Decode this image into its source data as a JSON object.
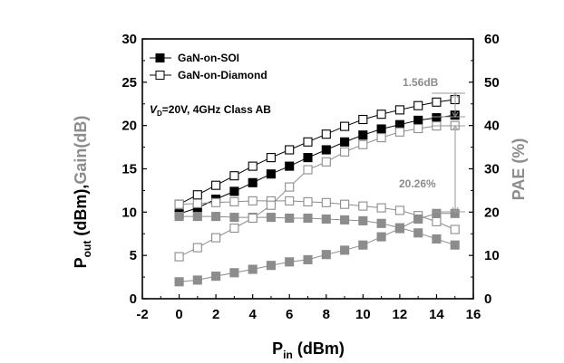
{
  "chart_data": {
    "type": "scatter",
    "xlabel": {
      "main": "P",
      "sub": "in",
      "rest": " (dBm)"
    },
    "ylabel_left": {
      "p": "P",
      "sub": "out",
      "mid": " (dBm),",
      "gain": "Gain(dB)"
    },
    "ylabel_right": "PAE (%)",
    "xlim": [
      -2,
      16
    ],
    "ylim_left": [
      0,
      30
    ],
    "ylim_right": [
      0,
      60
    ],
    "x_ticks": [
      "-2",
      "0",
      "2",
      "4",
      "6",
      "8",
      "10",
      "12",
      "14",
      "16"
    ],
    "y_left_ticks": [
      "0",
      "5",
      "10",
      "15",
      "20",
      "25",
      "30"
    ],
    "y_right_ticks": [
      "0",
      "10",
      "20",
      "30",
      "40",
      "50",
      "60"
    ],
    "legend": [
      {
        "label": "GaN-on-SOI",
        "marker": "filled-square"
      },
      {
        "label": "GaN-on-Diamond",
        "marker": "open-square"
      }
    ],
    "condition": {
      "v": "V",
      "sub": "D",
      "rest": "=20V, 4GHz Class AB"
    },
    "annotations": {
      "gain_delta": "1.56dB",
      "pae_delta": "20.26%"
    },
    "colors": {
      "black": "#000000",
      "gray": "#8c8c8c"
    },
    "series": [
      {
        "device": "GaN-on-SOI",
        "quantity": "Pout",
        "axis": "left",
        "color": "black",
        "marker": "filled",
        "x": [
          0,
          1,
          2,
          3,
          4,
          5,
          6,
          7,
          8,
          9,
          10,
          11,
          12,
          13,
          14,
          15
        ],
        "y": [
          9.8,
          10.5,
          11.5,
          12.4,
          13.4,
          14.4,
          15.3,
          16.3,
          17.2,
          18.1,
          18.9,
          19.6,
          20.1,
          20.6,
          20.9,
          21.2
        ]
      },
      {
        "device": "GaN-on-Diamond",
        "quantity": "Pout",
        "axis": "left",
        "color": "black",
        "marker": "open",
        "x": [
          0,
          1,
          2,
          3,
          4,
          5,
          6,
          7,
          8,
          9,
          10,
          11,
          12,
          13,
          14,
          15
        ],
        "y": [
          10.9,
          12.0,
          13.1,
          14.2,
          15.3,
          16.3,
          17.2,
          18.1,
          19.0,
          19.9,
          20.7,
          21.3,
          21.8,
          22.3,
          22.7,
          23.0
        ]
      },
      {
        "device": "GaN-on-SOI",
        "quantity": "Gain",
        "axis": "left",
        "color": "gray",
        "marker": "filled",
        "x": [
          0,
          1,
          2,
          3,
          4,
          5,
          6,
          7,
          8,
          9,
          10,
          11,
          12,
          13,
          14,
          15
        ],
        "y": [
          9.5,
          9.5,
          9.5,
          9.4,
          9.4,
          9.4,
          9.3,
          9.3,
          9.2,
          9.1,
          9.0,
          8.7,
          8.2,
          7.6,
          6.9,
          6.2
        ]
      },
      {
        "device": "GaN-on-Diamond",
        "quantity": "Gain",
        "axis": "left",
        "color": "gray",
        "marker": "open",
        "x": [
          0,
          1,
          2,
          3,
          4,
          5,
          6,
          7,
          8,
          9,
          10,
          11,
          12,
          13,
          14,
          15
        ],
        "y": [
          10.9,
          11.0,
          11.1,
          11.2,
          11.3,
          11.3,
          11.3,
          11.2,
          11.1,
          10.9,
          10.7,
          10.5,
          10.2,
          9.6,
          8.9,
          8.0
        ]
      },
      {
        "device": "GaN-on-SOI",
        "quantity": "PAE",
        "axis": "right",
        "color": "gray",
        "marker": "filled",
        "x": [
          0,
          1,
          2,
          3,
          4,
          5,
          6,
          7,
          8,
          9,
          10,
          11,
          12,
          13,
          14,
          15
        ],
        "y": [
          3.9,
          4.3,
          5.2,
          6.0,
          6.8,
          7.7,
          8.5,
          9.0,
          10.2,
          11.2,
          12.4,
          14.3,
          16.2,
          18.4,
          19.7,
          19.7
        ]
      },
      {
        "device": "GaN-on-Diamond",
        "quantity": "PAE",
        "axis": "right",
        "color": "gray",
        "marker": "open",
        "x": [
          0,
          1,
          2,
          3,
          4,
          5,
          6,
          7,
          8,
          9,
          10,
          11,
          12,
          13,
          14,
          15
        ],
        "y": [
          9.7,
          11.8,
          14.1,
          16.3,
          18.6,
          21.6,
          25.8,
          29.8,
          31.6,
          33.9,
          35.6,
          37.2,
          38.5,
          39.3,
          39.9,
          40.0
        ]
      }
    ]
  }
}
